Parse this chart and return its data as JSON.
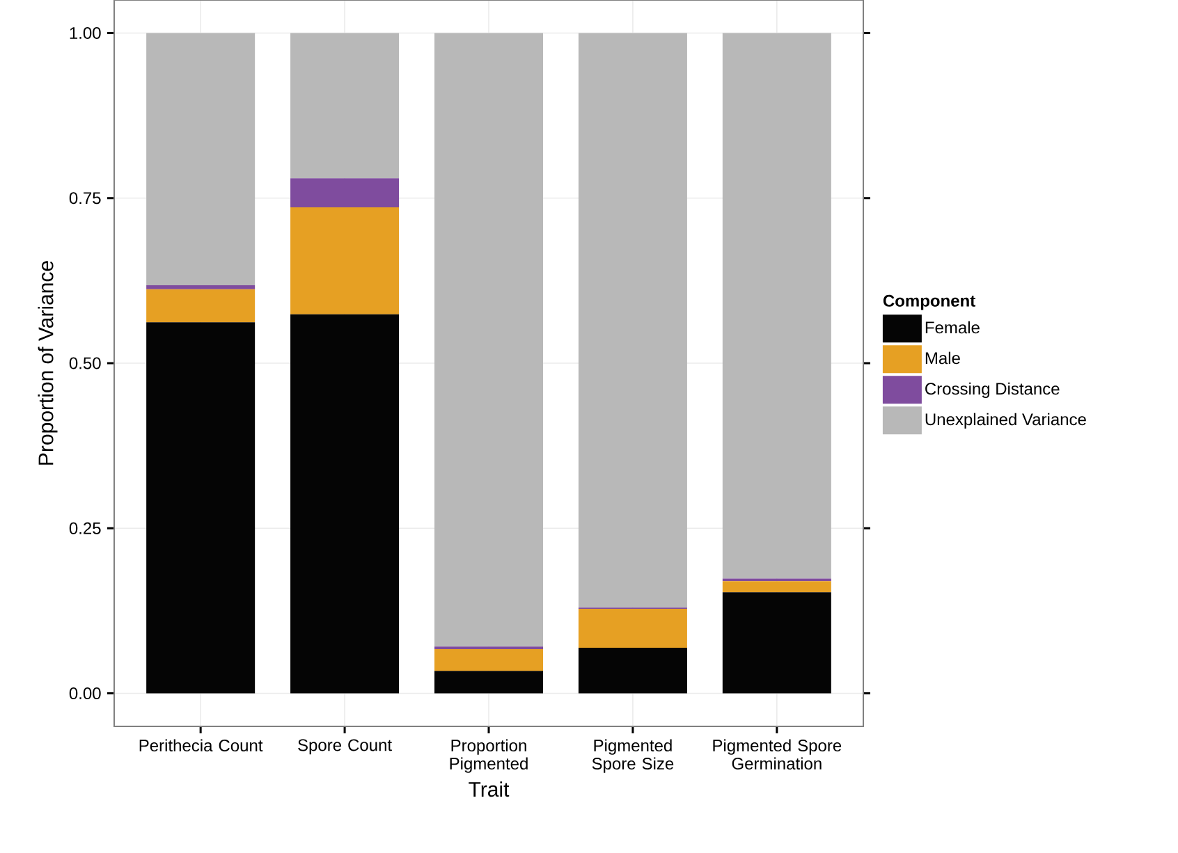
{
  "chart_data": {
    "type": "bar",
    "stacked": true,
    "xlabel": "Trait",
    "ylabel": "Proportion of Variance",
    "legend_title": "Component",
    "categories": [
      "Perithecia Count",
      "Spore Count",
      "Proportion Pigmented",
      "Pigmented Spore Size",
      "Pigmented Spore Germination"
    ],
    "series": [
      {
        "name": "Female",
        "color": "#050505",
        "values": [
          0.562,
          0.574,
          0.034,
          0.069,
          0.153
        ]
      },
      {
        "name": "Male",
        "color": "#e6a023",
        "values": [
          0.05,
          0.162,
          0.033,
          0.059,
          0.017
        ]
      },
      {
        "name": "Crossing Distance",
        "color": "#7f4c9e",
        "values": [
          0.006,
          0.044,
          0.004,
          0.002,
          0.004
        ]
      },
      {
        "name": "Unexplained Variance",
        "color": "#b8b8b8",
        "values": [
          0.382,
          0.22,
          0.929,
          0.87,
          0.826
        ]
      }
    ],
    "ylim": [
      -0.05,
      1.05
    ],
    "yticks": [
      {
        "value": 0,
        "label": "0.00"
      },
      {
        "value": 0.25,
        "label": "0.25"
      },
      {
        "value": 0.5,
        "label": "0.50"
      },
      {
        "value": 0.75,
        "label": "0.75"
      },
      {
        "value": 1,
        "label": "1.00"
      }
    ],
    "grid": true,
    "legend": "right"
  }
}
